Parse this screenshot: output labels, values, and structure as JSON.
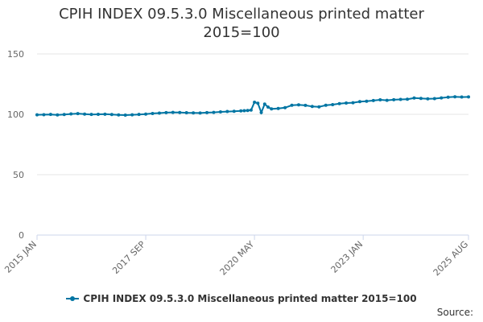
{
  "chart_data": {
    "type": "line",
    "title_lines": [
      "CPIH INDEX 09.5.3.0 Miscellaneous printed matter",
      "2015=100"
    ],
    "x_range": [
      "2015-01",
      "2025-08"
    ],
    "x_tick_labels": [
      {
        "date": "2015-01",
        "label": "2015 JAN"
      },
      {
        "date": "2017-09",
        "label": "2017 SEP"
      },
      {
        "date": "2020-05",
        "label": "2020 MAY"
      },
      {
        "date": "2023-01",
        "label": "2023 JAN"
      },
      {
        "date": "2025-08",
        "label": "2025 AUG"
      }
    ],
    "ylim": [
      0,
      150
    ],
    "y_ticks": [
      0,
      50,
      100,
      150
    ],
    "grid": true,
    "legend": "bottom",
    "series": [
      {
        "name": "CPIH INDEX 09.5.3.0 Miscellaneous printed matter 2015=100",
        "color": "#0075a3",
        "points": [
          [
            "2015-01",
            99.6
          ],
          [
            "2015-03",
            99.7
          ],
          [
            "2015-05",
            99.9
          ],
          [
            "2015-07",
            99.5
          ],
          [
            "2015-09",
            99.8
          ],
          [
            "2015-11",
            100.3
          ],
          [
            "2016-01",
            100.6
          ],
          [
            "2016-03",
            100.2
          ],
          [
            "2016-05",
            99.9
          ],
          [
            "2016-07",
            100.0
          ],
          [
            "2016-09",
            100.1
          ],
          [
            "2016-11",
            99.8
          ],
          [
            "2017-01",
            99.5
          ],
          [
            "2017-03",
            99.3
          ],
          [
            "2017-05",
            99.6
          ],
          [
            "2017-07",
            99.9
          ],
          [
            "2017-09",
            100.2
          ],
          [
            "2017-11",
            100.7
          ],
          [
            "2018-01",
            101.0
          ],
          [
            "2018-03",
            101.4
          ],
          [
            "2018-05",
            101.6
          ],
          [
            "2018-07",
            101.5
          ],
          [
            "2018-09",
            101.3
          ],
          [
            "2018-11",
            101.2
          ],
          [
            "2019-01",
            101.1
          ],
          [
            "2019-03",
            101.4
          ],
          [
            "2019-05",
            101.6
          ],
          [
            "2019-07",
            102.0
          ],
          [
            "2019-09",
            102.3
          ],
          [
            "2019-11",
            102.5
          ],
          [
            "2020-01",
            102.8
          ],
          [
            "2020-02",
            103.0
          ],
          [
            "2020-03",
            103.2
          ],
          [
            "2020-04",
            103.5
          ],
          [
            "2020-05",
            110.0
          ],
          [
            "2020-06",
            109.2
          ],
          [
            "2020-07",
            101.5
          ],
          [
            "2020-08",
            108.5
          ],
          [
            "2020-09",
            106.0
          ],
          [
            "2020-10",
            104.5
          ],
          [
            "2020-12",
            104.8
          ],
          [
            "2021-02",
            105.5
          ],
          [
            "2021-04",
            107.5
          ],
          [
            "2021-06",
            107.8
          ],
          [
            "2021-08",
            107.4
          ],
          [
            "2021-10",
            106.5
          ],
          [
            "2021-12",
            106.2
          ],
          [
            "2022-02",
            107.5
          ],
          [
            "2022-04",
            108.0
          ],
          [
            "2022-06",
            108.8
          ],
          [
            "2022-08",
            109.3
          ],
          [
            "2022-10",
            109.6
          ],
          [
            "2022-12",
            110.5
          ],
          [
            "2023-02",
            110.8
          ],
          [
            "2023-04",
            111.4
          ],
          [
            "2023-06",
            112.0
          ],
          [
            "2023-08",
            111.6
          ],
          [
            "2023-10",
            112.1
          ],
          [
            "2023-12",
            112.3
          ],
          [
            "2024-02",
            112.5
          ],
          [
            "2024-04",
            113.5
          ],
          [
            "2024-06",
            113.2
          ],
          [
            "2024-08",
            112.8
          ],
          [
            "2024-10",
            113.0
          ],
          [
            "2024-12",
            113.6
          ],
          [
            "2025-02",
            114.2
          ],
          [
            "2025-04",
            114.5
          ],
          [
            "2025-06",
            114.3
          ],
          [
            "2025-08",
            114.4
          ]
        ]
      }
    ]
  },
  "source_label": "Source:"
}
